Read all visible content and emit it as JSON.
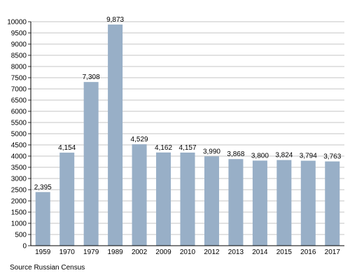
{
  "chart_data": {
    "type": "bar",
    "title": "",
    "xlabel": "",
    "ylabel": "",
    "categories": [
      "1959",
      "1970",
      "1979",
      "1989",
      "2002",
      "2009",
      "2010",
      "2012",
      "2013",
      "2014",
      "2015",
      "2016",
      "2017"
    ],
    "values": [
      2395,
      4154,
      7308,
      9873,
      4529,
      4162,
      4157,
      3990,
      3868,
      3800,
      3824,
      3794,
      3763
    ],
    "data_labels": [
      "2,395",
      "4,154",
      "7,308",
      "9,873",
      "4,529",
      "4,162",
      "4,157",
      "3,990",
      "3,868",
      "3,800",
      "3,824",
      "3,794",
      "3,763"
    ],
    "ylim": [
      0,
      10000
    ],
    "yticks": [
      0,
      500,
      1000,
      1500,
      2000,
      2500,
      3000,
      3500,
      4000,
      4500,
      5000,
      5500,
      6000,
      6500,
      7000,
      7500,
      8000,
      8500,
      9000,
      9500,
      10000
    ],
    "grid": true,
    "colors": {
      "bar": "#98afc7",
      "grid": "#b3b3b3",
      "axis": "#000000"
    }
  },
  "source_note": "Source Russian Census"
}
